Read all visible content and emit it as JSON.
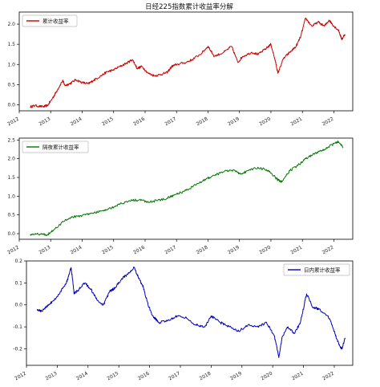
{
  "figure": {
    "title": "日经225指数累计收益率分解"
  },
  "chart_data": [
    {
      "type": "line",
      "title": "日经225指数累计收益率分解",
      "legend": "top-left",
      "grid": false,
      "xlim": [
        2012.0,
        2022.6
      ],
      "ylim": [
        -0.15,
        2.3
      ],
      "x_ticks": [
        2012,
        2013,
        2014,
        2015,
        2016,
        2017,
        2018,
        2019,
        2020,
        2021,
        2022
      ],
      "y_ticks": [
        0.0,
        0.5,
        1.0,
        1.5,
        2.0
      ],
      "series": [
        {
          "name": "累计收益率",
          "color": "#cc0000",
          "x": [
            2012.35,
            2012.5,
            2012.75,
            2012.9,
            2013.05,
            2013.2,
            2013.38,
            2013.45,
            2013.6,
            2013.8,
            2014.0,
            2014.2,
            2014.35,
            2014.6,
            2014.8,
            2014.95,
            2015.2,
            2015.45,
            2015.6,
            2015.75,
            2015.9,
            2016.1,
            2016.3,
            2016.5,
            2016.7,
            2016.85,
            2017.0,
            2017.3,
            2017.5,
            2017.8,
            2018.0,
            2018.2,
            2018.5,
            2018.75,
            2018.95,
            2019.1,
            2019.4,
            2019.6,
            2019.85,
            2020.0,
            2020.15,
            2020.22,
            2020.4,
            2020.6,
            2020.8,
            2020.95,
            2021.1,
            2021.3,
            2021.5,
            2021.7,
            2021.85,
            2022.0,
            2022.15,
            2022.25,
            2022.35
          ],
          "values": [
            -0.05,
            -0.02,
            -0.05,
            -0.02,
            0.15,
            0.35,
            0.6,
            0.48,
            0.52,
            0.62,
            0.55,
            0.52,
            0.6,
            0.72,
            0.82,
            0.85,
            0.95,
            1.05,
            1.12,
            0.9,
            0.95,
            0.78,
            0.72,
            0.75,
            0.8,
            0.95,
            1.0,
            1.05,
            1.12,
            1.28,
            1.45,
            1.2,
            1.3,
            1.45,
            1.05,
            1.2,
            1.3,
            1.25,
            1.4,
            1.5,
            1.05,
            0.78,
            1.15,
            1.3,
            1.45,
            1.7,
            2.15,
            1.95,
            2.05,
            1.95,
            2.1,
            1.95,
            1.85,
            1.62,
            1.75
          ]
        }
      ]
    },
    {
      "type": "line",
      "legend": "top-left",
      "grid": false,
      "xlim": [
        2012.0,
        2022.6
      ],
      "ylim": [
        -0.15,
        2.55
      ],
      "x_ticks": [
        2012,
        2013,
        2014,
        2015,
        2016,
        2017,
        2018,
        2019,
        2020,
        2021,
        2022
      ],
      "y_ticks": [
        0.0,
        0.5,
        1.0,
        1.5,
        2.0,
        2.5
      ],
      "series": [
        {
          "name": "隔夜累计收益率",
          "color": "#007700",
          "x": [
            2012.35,
            2012.6,
            2012.9,
            2013.1,
            2013.4,
            2013.7,
            2014.0,
            2014.3,
            2014.6,
            2014.9,
            2015.2,
            2015.5,
            2015.8,
            2016.1,
            2016.4,
            2016.7,
            2017.0,
            2017.3,
            2017.6,
            2017.9,
            2018.2,
            2018.5,
            2018.8,
            2019.0,
            2019.2,
            2019.5,
            2019.8,
            2020.0,
            2020.2,
            2020.35,
            2020.6,
            2020.9,
            2021.1,
            2021.4,
            2021.7,
            2022.0,
            2022.15,
            2022.3
          ],
          "values": [
            -0.02,
            -0.01,
            -0.02,
            0.1,
            0.32,
            0.45,
            0.48,
            0.55,
            0.6,
            0.68,
            0.78,
            0.88,
            0.9,
            0.85,
            0.88,
            0.95,
            1.05,
            1.15,
            1.3,
            1.45,
            1.55,
            1.65,
            1.7,
            1.6,
            1.65,
            1.75,
            1.72,
            1.62,
            1.45,
            1.38,
            1.68,
            1.85,
            2.0,
            2.15,
            2.25,
            2.4,
            2.45,
            2.3
          ]
        }
      ]
    },
    {
      "type": "line",
      "legend": "top-right",
      "grid": false,
      "xlim": [
        2012.0,
        2022.6
      ],
      "ylim": [
        -0.275,
        0.2
      ],
      "x_ticks": [
        2012,
        2013,
        2014,
        2015,
        2016,
        2017,
        2018,
        2019,
        2020,
        2021,
        2022
      ],
      "y_ticks": [
        -0.2,
        -0.1,
        0.0,
        0.1,
        0.2
      ],
      "series": [
        {
          "name": "日内累计收益率",
          "color": "#0000bb",
          "x": [
            2012.35,
            2012.5,
            2012.7,
            2012.9,
            2013.1,
            2013.3,
            2013.45,
            2013.55,
            2013.7,
            2013.9,
            2014.1,
            2014.3,
            2014.5,
            2014.7,
            2014.9,
            2015.1,
            2015.3,
            2015.5,
            2015.65,
            2015.8,
            2015.95,
            2016.1,
            2016.3,
            2016.6,
            2016.9,
            2017.2,
            2017.5,
            2017.8,
            2018.0,
            2018.3,
            2018.6,
            2018.9,
            2019.2,
            2019.5,
            2019.8,
            2020.05,
            2020.2,
            2020.3,
            2020.5,
            2020.7,
            2020.9,
            2021.1,
            2021.3,
            2021.5,
            2021.8,
            2022.0,
            2022.15,
            2022.25,
            2022.35
          ],
          "values": [
            -0.02,
            -0.03,
            0.0,
            0.02,
            0.06,
            0.1,
            0.17,
            0.05,
            0.07,
            0.1,
            0.07,
            0.02,
            0.0,
            0.06,
            0.08,
            0.12,
            0.14,
            0.17,
            0.12,
            0.08,
            0.0,
            -0.05,
            -0.08,
            -0.07,
            -0.05,
            -0.06,
            -0.09,
            -0.1,
            -0.05,
            -0.08,
            -0.1,
            -0.12,
            -0.09,
            -0.1,
            -0.08,
            -0.14,
            -0.24,
            -0.15,
            -0.1,
            -0.13,
            -0.08,
            0.05,
            -0.01,
            -0.02,
            -0.05,
            -0.12,
            -0.18,
            -0.2,
            -0.15
          ]
        }
      ]
    }
  ]
}
